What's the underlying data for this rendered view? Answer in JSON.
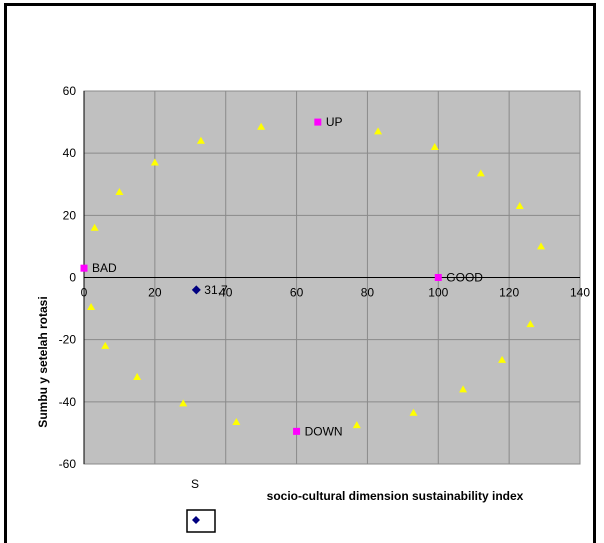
{
  "chart_data": {
    "type": "scatter",
    "title": "",
    "xlabel": "socio-cultural dimension sustainability index",
    "ylabel": "Sumbu y setelah rotasi",
    "xlim": [
      0,
      140
    ],
    "ylim": [
      -60,
      60
    ],
    "x_ticks": [
      0,
      20,
      40,
      60,
      80,
      100,
      120,
      140
    ],
    "y_ticks": [
      -60,
      -40,
      -20,
      0,
      20,
      40,
      60
    ],
    "grid": true,
    "plot_background": "#c0c0c0",
    "series": [
      {
        "marker": "triangle",
        "color": "#ffff00",
        "points": [
          [
            3,
            16
          ],
          [
            10,
            27.5
          ],
          [
            20,
            37
          ],
          [
            33,
            44
          ],
          [
            50,
            48.5
          ],
          [
            83,
            47
          ],
          [
            99,
            42
          ],
          [
            112,
            33.5
          ],
          [
            123,
            23
          ],
          [
            129,
            10
          ],
          [
            126,
            -15
          ],
          [
            118,
            -26.5
          ],
          [
            107,
            -36
          ],
          [
            93,
            -43.5
          ],
          [
            77,
            -47.5
          ],
          [
            43,
            -46.5
          ],
          [
            28,
            -40.5
          ],
          [
            15,
            -32
          ],
          [
            6,
            -22
          ],
          [
            2,
            -9.5
          ]
        ]
      },
      {
        "marker": "square",
        "color": "#ff00ff",
        "points": [
          {
            "x": 0,
            "y": 3,
            "label": "BAD"
          },
          {
            "x": 66,
            "y": 50,
            "label": "UP"
          },
          {
            "x": 100,
            "y": 0,
            "label": "GOOD"
          },
          {
            "x": 60,
            "y": -49.5,
            "label": "DOWN"
          }
        ]
      },
      {
        "marker": "diamond",
        "color": "#000080",
        "points": [
          {
            "x": 31.7,
            "y": -4,
            "label": "31,7"
          }
        ]
      }
    ],
    "hidden_xlabel_fragment": "S"
  },
  "legend": {
    "marker_color": "#000080"
  }
}
